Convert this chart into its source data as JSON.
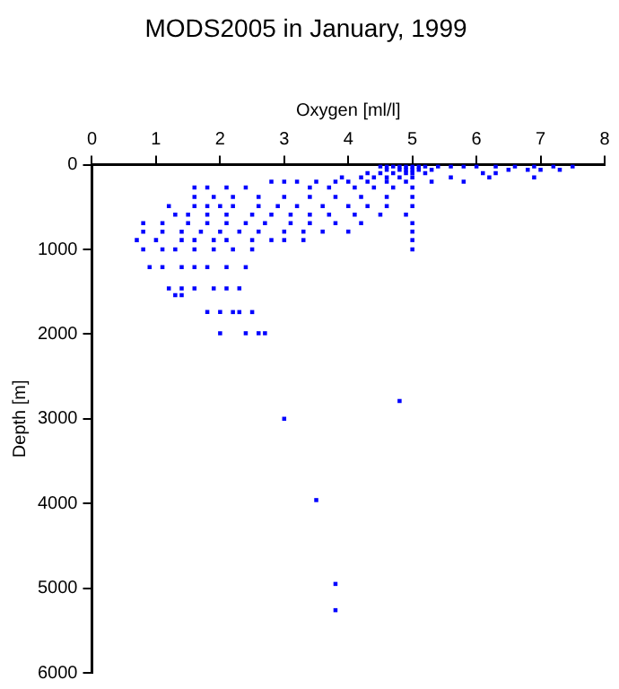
{
  "chart_data": {
    "type": "scatter",
    "title": "MODS2005 in January, 1999",
    "xlabel": "Oxygen [ml/l]",
    "ylabel": "Depth [m]",
    "xlim": [
      0,
      8
    ],
    "xticks": [
      0,
      1,
      2,
      3,
      4,
      5,
      6,
      7,
      8
    ],
    "ylim": [
      6000,
      0
    ],
    "yticks": [
      0,
      1000,
      2000,
      3000,
      4000,
      5000,
      6000
    ],
    "grid": false,
    "legend": false,
    "marker": "square",
    "series": [
      {
        "color": "#0000ff",
        "x": [
          4.5,
          4.6,
          4.7,
          4.8,
          4.9,
          5.0,
          5.1,
          5.2,
          5.4,
          5.6,
          5.8,
          6.0,
          6.3,
          6.6,
          6.9,
          7.2,
          7.5,
          4.6,
          4.8,
          4.9,
          5.0,
          5.1,
          5.3,
          6.5,
          6.8,
          7.0,
          7.3,
          4.3,
          4.5,
          4.7,
          4.9,
          5.0,
          5.2,
          6.1,
          6.3,
          3.9,
          4.2,
          4.4,
          4.6,
          4.8,
          5.0,
          5.6,
          6.2,
          6.9,
          2.8,
          3.0,
          3.2,
          3.5,
          3.8,
          4.0,
          4.3,
          4.6,
          4.9,
          5.3,
          5.8,
          1.6,
          1.8,
          2.1,
          2.4,
          3.4,
          3.7,
          4.1,
          4.4,
          4.7,
          5.0,
          1.6,
          1.9,
          2.2,
          2.6,
          3.0,
          3.4,
          3.8,
          4.2,
          4.6,
          5.0,
          1.2,
          1.6,
          1.8,
          2.0,
          2.2,
          2.6,
          2.9,
          3.2,
          3.6,
          4.0,
          4.3,
          4.6,
          5.0,
          1.3,
          1.5,
          1.8,
          2.1,
          2.5,
          2.8,
          3.1,
          3.4,
          3.7,
          4.1,
          4.5,
          4.9,
          0.8,
          1.1,
          1.5,
          1.8,
          2.1,
          2.4,
          2.7,
          3.1,
          3.4,
          3.8,
          4.2,
          5.0,
          0.8,
          1.1,
          1.4,
          1.7,
          2.0,
          2.3,
          2.6,
          3.0,
          3.3,
          3.6,
          4.0,
          5.0,
          0.7,
          1.0,
          1.4,
          1.6,
          1.9,
          2.1,
          2.5,
          2.8,
          3.0,
          3.3,
          5.0,
          0.8,
          1.1,
          1.3,
          1.6,
          1.9,
          2.2,
          2.5,
          5.0,
          0.9,
          1.1,
          1.4,
          1.6,
          1.8,
          2.1,
          2.4,
          1.2,
          1.4,
          1.6,
          1.9,
          2.1,
          2.3,
          1.3,
          1.4,
          1.8,
          2.0,
          2.2,
          2.3,
          2.5,
          2.0,
          2.4,
          2.6,
          2.7,
          4.8,
          3.0,
          3.5,
          3.8,
          3.8
        ],
        "values": [
          20,
          20,
          20,
          20,
          20,
          20,
          20,
          20,
          20,
          20,
          20,
          20,
          20,
          20,
          20,
          20,
          20,
          60,
          60,
          60,
          60,
          60,
          60,
          60,
          60,
          60,
          60,
          100,
          100,
          100,
          100,
          100,
          100,
          100,
          100,
          150,
          150,
          150,
          150,
          150,
          150,
          150,
          150,
          150,
          200,
          200,
          200,
          200,
          200,
          200,
          200,
          200,
          200,
          200,
          200,
          270,
          270,
          270,
          270,
          270,
          270,
          270,
          270,
          270,
          270,
          380,
          380,
          380,
          380,
          380,
          380,
          380,
          380,
          380,
          380,
          490,
          490,
          490,
          490,
          490,
          490,
          490,
          490,
          490,
          490,
          490,
          490,
          490,
          590,
          590,
          590,
          590,
          590,
          590,
          590,
          590,
          590,
          590,
          590,
          590,
          690,
          690,
          690,
          690,
          690,
          690,
          690,
          690,
          690,
          690,
          690,
          690,
          790,
          790,
          790,
          790,
          790,
          790,
          790,
          790,
          790,
          790,
          790,
          790,
          890,
          890,
          890,
          890,
          890,
          890,
          890,
          890,
          890,
          890,
          890,
          1000,
          1000,
          1000,
          1000,
          1000,
          1000,
          1000,
          1000,
          1210,
          1210,
          1210,
          1210,
          1210,
          1210,
          1210,
          1460,
          1460,
          1460,
          1460,
          1460,
          1460,
          1540,
          1540,
          1740,
          1740,
          1740,
          1740,
          1740,
          1990,
          1990,
          1990,
          1990,
          2790,
          3000,
          3960,
          4950,
          5260
        ]
      }
    ]
  }
}
